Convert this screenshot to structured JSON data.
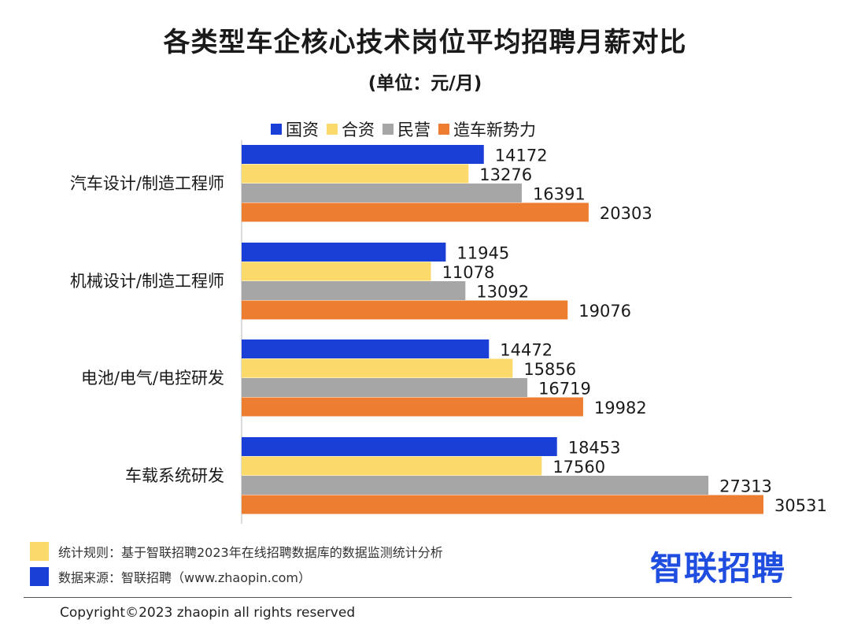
{
  "colors": {
    "guoqi": "#1a3fd6",
    "hezi": "#fcd96b",
    "minying": "#a6a6a6",
    "xinshili": "#ed7d31",
    "brand": "#1e4de0"
  },
  "chart_data": {
    "type": "bar",
    "orientation": "horizontal",
    "title": "各类型车企核心技术岗位平均招聘月薪对比",
    "subtitle": "(单位：元/月)",
    "categories": [
      "汽车设计/制造工程师",
      "机械设计/制造工程师",
      "电池/电气/电控研发",
      "车载系统研发"
    ],
    "series": [
      {
        "name": "国资",
        "color": "#1a3fd6",
        "values": [
          14172,
          11945,
          14472,
          18453
        ]
      },
      {
        "name": "合资",
        "color": "#fcd96b",
        "values": [
          13276,
          11078,
          15856,
          17560
        ]
      },
      {
        "name": "民营",
        "color": "#a6a6a6",
        "values": [
          16391,
          13092,
          16719,
          27313
        ]
      },
      {
        "name": "造车新势力",
        "color": "#ed7d31",
        "values": [
          20303,
          19076,
          19982,
          30531
        ]
      }
    ],
    "xlim": [
      0,
      30531
    ],
    "legend_position": "top",
    "grid": false
  },
  "notes": {
    "rule": "统计规则：基于智联招聘2023年在线招聘数据库的数据监测统计分析",
    "source": "数据来源：智联招聘（www.zhaopin.com）"
  },
  "brand": "智联招聘",
  "copyright": "Copyright©2023 zhaopin all rights reserved"
}
